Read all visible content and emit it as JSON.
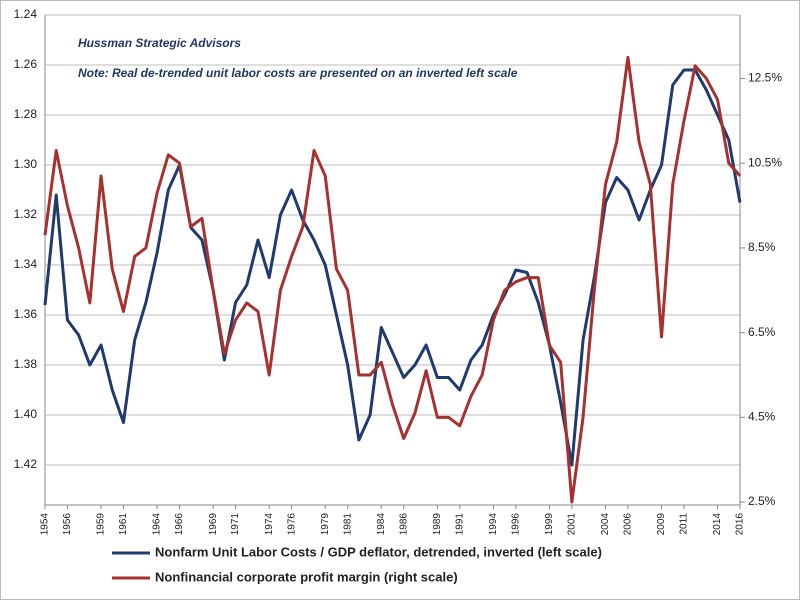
{
  "chart_data": {
    "type": "line",
    "annotations": [
      "Hussman Strategic Advisors",
      "Note: Real de-trended unit labor costs are presented on an inverted left scale"
    ],
    "x": [
      1954,
      1955,
      1956,
      1957,
      1958,
      1959,
      1960,
      1961,
      1962,
      1963,
      1964,
      1965,
      1966,
      1967,
      1968,
      1969,
      1970,
      1971,
      1972,
      1973,
      1974,
      1975,
      1976,
      1977,
      1978,
      1979,
      1980,
      1981,
      1982,
      1983,
      1984,
      1985,
      1986,
      1987,
      1988,
      1989,
      1990,
      1991,
      1992,
      1993,
      1994,
      1995,
      1996,
      1997,
      1998,
      1999,
      2000,
      2001,
      2002,
      2003,
      2004,
      2005,
      2006,
      2007,
      2008,
      2009,
      2010,
      2011,
      2012,
      2013,
      2014,
      2015,
      2016
    ],
    "series": [
      {
        "name": "Nonfarm Unit Labor Costs / GDP deflator, detrended, inverted (left scale)",
        "color": "#1f3a6e",
        "values": [
          1.356,
          1.312,
          1.362,
          1.368,
          1.38,
          1.372,
          1.39,
          1.403,
          1.37,
          1.355,
          1.335,
          1.31,
          1.3,
          1.325,
          1.33,
          1.35,
          1.378,
          1.355,
          1.348,
          1.33,
          1.345,
          1.32,
          1.31,
          1.322,
          1.33,
          1.34,
          1.36,
          1.38,
          1.41,
          1.4,
          1.365,
          1.375,
          1.385,
          1.38,
          1.372,
          1.385,
          1.385,
          1.39,
          1.378,
          1.372,
          1.36,
          1.352,
          1.342,
          1.343,
          1.355,
          1.372,
          1.395,
          1.42,
          1.37,
          1.345,
          1.315,
          1.305,
          1.31,
          1.322,
          1.31,
          1.3,
          1.268,
          1.262,
          1.262,
          1.27,
          1.28,
          1.29,
          1.315
        ]
      },
      {
        "name": "Nonfinancial corporate profit margin (right scale)",
        "color": "#a8302f",
        "axis": "y2",
        "values": [
          8.8,
          10.8,
          9.5,
          8.5,
          7.2,
          10.2,
          8.0,
          7.0,
          8.3,
          8.5,
          9.8,
          10.7,
          10.5,
          9.0,
          9.2,
          7.5,
          6.0,
          6.8,
          7.2,
          7.0,
          5.5,
          7.5,
          8.3,
          9.0,
          10.8,
          10.2,
          8.0,
          7.5,
          5.5,
          5.5,
          5.8,
          4.8,
          4.0,
          4.6,
          5.6,
          4.5,
          4.5,
          4.3,
          5.0,
          5.5,
          6.8,
          7.5,
          7.7,
          7.8,
          7.8,
          6.2,
          5.8,
          2.5,
          4.5,
          7.5,
          10.0,
          11.0,
          13.0,
          11.0,
          10.0,
          6.4,
          10.0,
          11.5,
          12.8,
          12.5,
          12.0,
          10.5,
          10.2
        ]
      }
    ],
    "xlim": [
      1954,
      2016
    ],
    "xticks": [
      1954,
      1956,
      1959,
      1961,
      1964,
      1966,
      1969,
      1971,
      1974,
      1976,
      1979,
      1981,
      1984,
      1986,
      1989,
      1991,
      1994,
      1996,
      1999,
      2001,
      2004,
      2006,
      2009,
      2011,
      2014,
      2016
    ],
    "ylim": [
      1.24,
      1.436
    ],
    "y_inverted": true,
    "yticks": [
      1.24,
      1.26,
      1.28,
      {
        "value": 1.3,
        "label": "1.30"
      },
      1.32,
      1.34,
      1.36,
      1.38,
      {
        "value": 1.4,
        "label": "1.40"
      },
      1.42
    ],
    "y2lim": [
      2.43,
      14.0
    ],
    "y2ticks": [
      {
        "value": 12.5,
        "label": "12.5%"
      },
      {
        "value": 10.5,
        "label": "10.5%"
      },
      {
        "value": 8.5,
        "label": "8.5%"
      },
      {
        "value": 6.5,
        "label": "6.5%"
      },
      {
        "value": 4.5,
        "label": "4.5%"
      },
      {
        "value": 2.5,
        "label": "2.5%"
      }
    ],
    "grid": true
  }
}
